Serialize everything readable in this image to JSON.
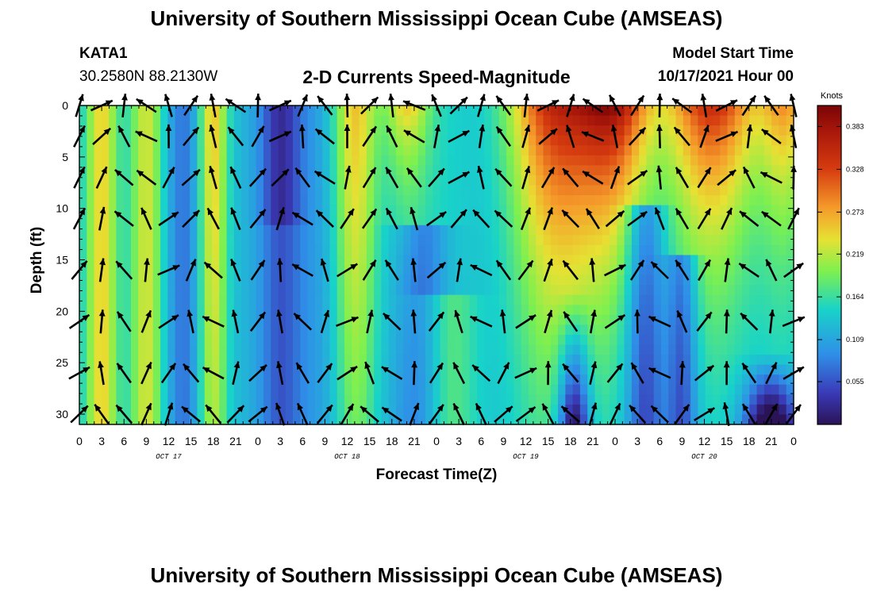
{
  "page": {
    "title_top": "University of Southern Mississippi Ocean Cube (AMSEAS)",
    "title_bottom": "University of Southern Mississippi Ocean Cube (AMSEAS)",
    "station_id": "KATA1",
    "station_coords": "30.2580N  88.2130W",
    "model_start_label": "Model Start Time",
    "model_start_value": "10/17/2021 Hour 00"
  },
  "chart_data": {
    "type": "heatmap",
    "title": "2-D Currents Speed-Magnitude",
    "xlabel": "Forecast Time(Z)",
    "ylabel": "Depth (ft)",
    "x_range_hours": [
      0,
      96
    ],
    "ylim": [
      0,
      31
    ],
    "x_tick_labels": [
      "0",
      "3",
      "6",
      "9",
      "12",
      "15",
      "18",
      "21",
      "0",
      "3",
      "6",
      "9",
      "12",
      "15",
      "18",
      "21",
      "0",
      "3",
      "6",
      "9",
      "12",
      "15",
      "18",
      "21",
      "0",
      "3",
      "6",
      "9",
      "12",
      "15",
      "18",
      "21",
      "0"
    ],
    "date_labels": [
      {
        "text": "OCT 17",
        "hour": 12
      },
      {
        "text": "OCT 18",
        "hour": 36
      },
      {
        "text": "OCT 19",
        "hour": 60
      },
      {
        "text": "OCT 20",
        "hour": 84
      }
    ],
    "y_ticks": [
      0,
      5,
      10,
      15,
      20,
      25,
      30
    ],
    "colorbar": {
      "units": "Knots",
      "min": 0.0,
      "max": 0.41,
      "tick_labels": [
        "0.383",
        "0.328",
        "0.273",
        "0.219",
        "0.164",
        "0.109",
        "0.055"
      ],
      "tick_values": [
        0.383,
        0.328,
        0.273,
        0.219,
        0.164,
        0.109,
        0.055
      ]
    },
    "vector_depths_ft": [
      0,
      3,
      7,
      11,
      16,
      21,
      26,
      30
    ]
  }
}
